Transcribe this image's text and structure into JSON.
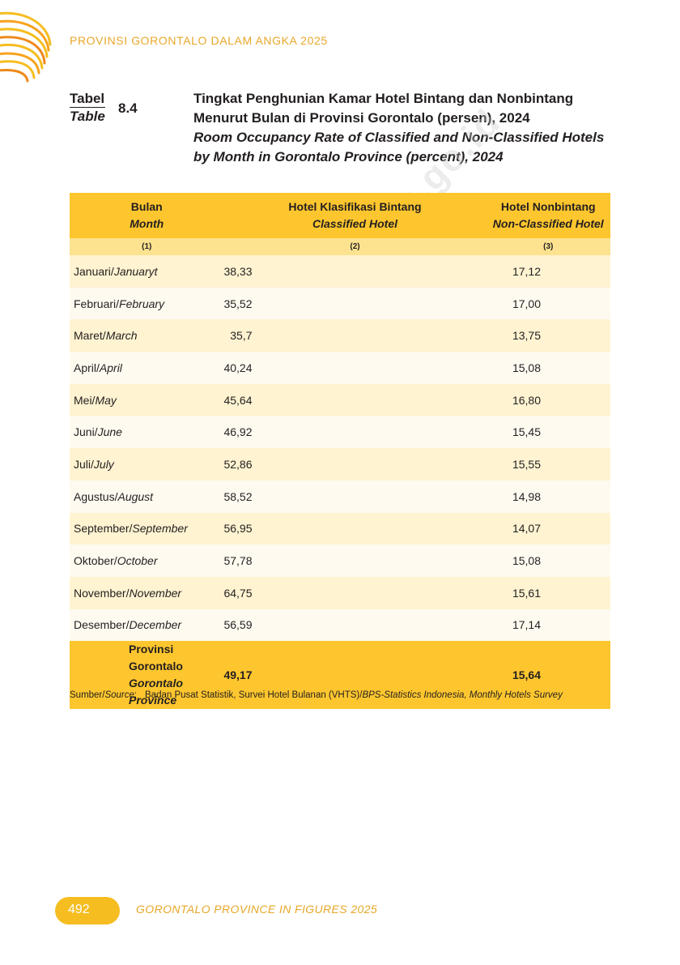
{
  "header": {
    "running_title": "PROVINSI GORONTALO DALAM ANGKA 2025"
  },
  "table_label": {
    "id": "Tabel",
    "en": "Table",
    "number": "8.4"
  },
  "title": {
    "id": "Tingkat Penghunian Kamar Hotel Bintang dan Nonbintang Menurut Bulan di Provinsi Gorontalo (persen), 2024",
    "en": "Room Occupancy Rate of Classified and Non-Classified Hotels by Month in Gorontalo Province (percent), 2024"
  },
  "columns": [
    {
      "id": "Bulan",
      "en": "Month",
      "num": "(1)"
    },
    {
      "id": "Hotel Klasifikasi Bintang",
      "en": "Classified Hotel",
      "num": "(2)"
    },
    {
      "id": "Hotel Nonbintang",
      "en": "Non-Classified Hotel",
      "num": "(3)"
    }
  ],
  "rows": [
    {
      "month_id": "Januari/",
      "month_en": "Januaryt",
      "classified": "38,33",
      "non_classified": "17,12"
    },
    {
      "month_id": "Februari/",
      "month_en": "February",
      "classified": "35,52",
      "non_classified": "17,00"
    },
    {
      "month_id": "Maret/",
      "month_en": "March",
      "classified": "35,7",
      "non_classified": "13,75"
    },
    {
      "month_id": "April/",
      "month_en": "April",
      "classified": "40,24",
      "non_classified": "15,08"
    },
    {
      "month_id": "Mei/",
      "month_en": "May",
      "classified": "45,64",
      "non_classified": "16,80"
    },
    {
      "month_id": "Juni/",
      "month_en": "June",
      "classified": "46,92",
      "non_classified": "15,45"
    },
    {
      "month_id": "Juli/",
      "month_en": "July",
      "classified": "52,86",
      "non_classified": "15,55"
    },
    {
      "month_id": "Agustus/",
      "month_en": "August",
      "classified": "58,52",
      "non_classified": "14,98"
    },
    {
      "month_id": "September/",
      "month_en": "September",
      "classified": "56,95",
      "non_classified": "14,07"
    },
    {
      "month_id": "Oktober/",
      "month_en": "October",
      "classified": "57,78",
      "non_classified": "15,08"
    },
    {
      "month_id": "November/",
      "month_en": "November",
      "classified": "64,75",
      "non_classified": "15,61"
    },
    {
      "month_id": "Desember/",
      "month_en": "December",
      "classified": "56,59",
      "non_classified": "17,14"
    }
  ],
  "total": {
    "label_id": "Provinsi Gorontalo",
    "label_en": "Gorontalo Province",
    "classified": "49,17",
    "non_classified": "15,64"
  },
  "source": {
    "label_id": "Sumber/",
    "label_en": "Source",
    "colon": ":",
    "text_id": "Badan Pusat Statistik, Survei Hotel Bulanan (VHTS)/",
    "text_en": "BPS-Statistics Indonesia, Monthly Hotels Survey"
  },
  "watermark": "https://gorontalo.bps.go.id",
  "footer": {
    "page_number": "492",
    "title": "GORONTALO PROVINCE IN FIGURES 2025"
  },
  "colors": {
    "accent": "#fec62e",
    "accent_light": "#fde38f",
    "row_odd": "#fff3d1",
    "row_even": "#fefaf0",
    "header_text": "#e8a72a"
  }
}
